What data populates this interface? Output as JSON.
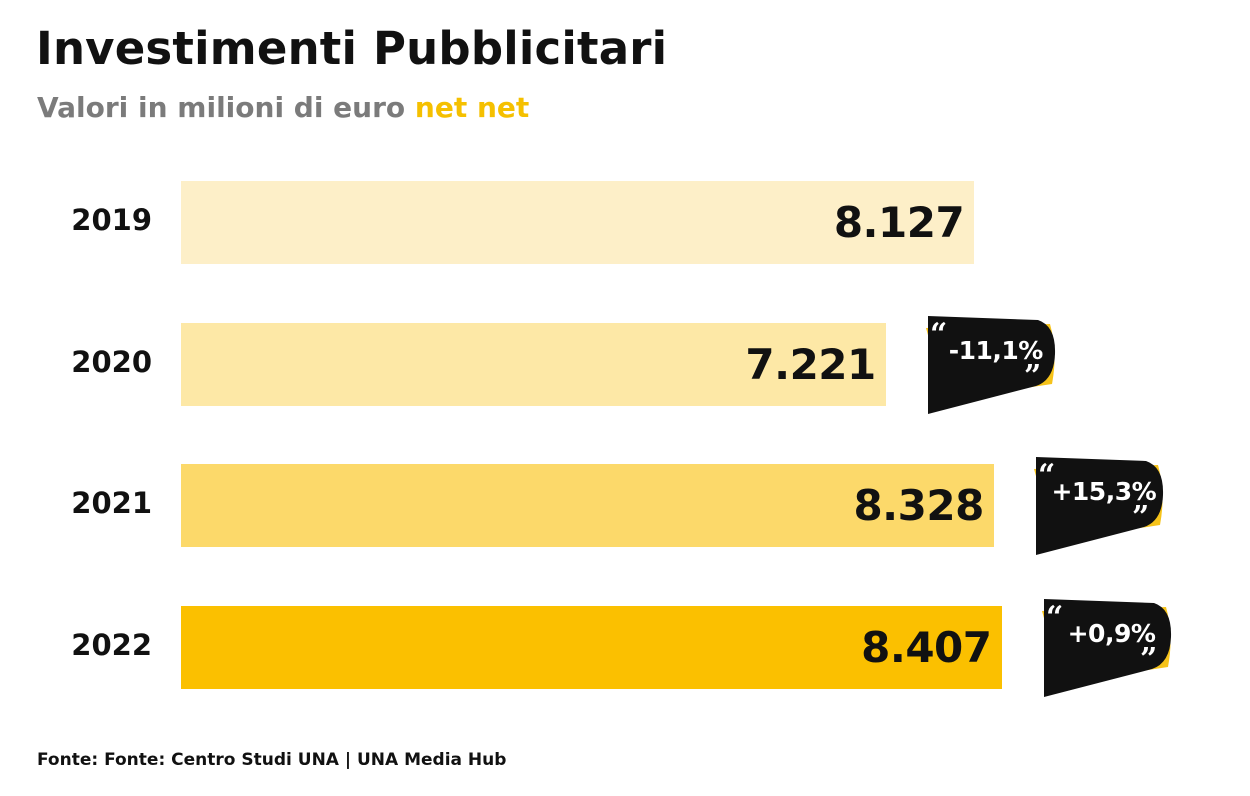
{
  "header": {
    "title": "Investimenti Pubblicitari",
    "subtitle_prefix": "Valori in milioni di euro ",
    "subtitle_highlight": "net net"
  },
  "chart_data": {
    "type": "bar",
    "orientation": "horizontal",
    "categories": [
      "2019",
      "2020",
      "2021",
      "2022"
    ],
    "values": [
      8127,
      7221,
      8328,
      8407
    ],
    "value_labels": [
      "8.127",
      "7.221",
      "8.328",
      "8.407"
    ],
    "change_labels": [
      null,
      "-11,1%",
      "+15,3%",
      "+0,9%"
    ],
    "bar_colors": [
      "#fdefc8",
      "#fde8a6",
      "#fcd96a",
      "#fbc000"
    ],
    "badge_color": "#111111",
    "badge_accent": "#f6c31a",
    "title": "Investimenti Pubblicitari",
    "subtitle": "Valori in milioni di euro net net"
  },
  "footer": {
    "source": "Fonte: Fonte: Centro Studi UNA | UNA Media Hub"
  }
}
